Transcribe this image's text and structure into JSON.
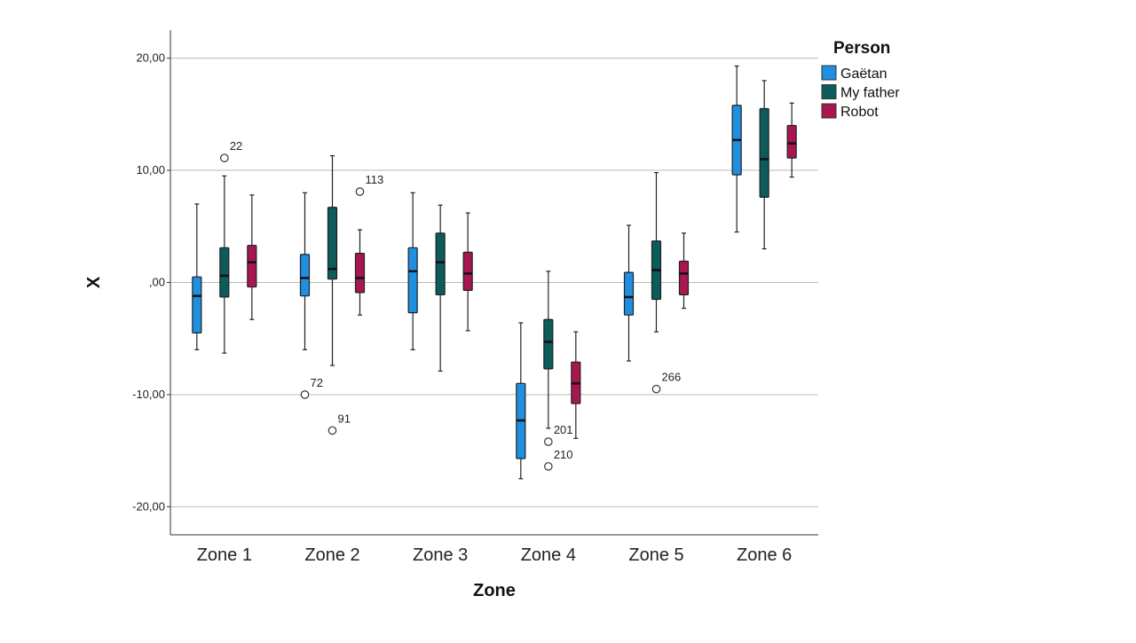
{
  "chart_data": {
    "type": "boxplot",
    "xlabel": "Zone",
    "ylabel": "X",
    "ylim": [
      -22.5,
      22.5
    ],
    "yticks": [
      {
        "value": 20,
        "label": "20,00"
      },
      {
        "value": 10,
        "label": "10,00"
      },
      {
        "value": 0,
        "label": ",00"
      },
      {
        "value": -10,
        "label": "-10,00"
      },
      {
        "value": -20,
        "label": "-20,00"
      }
    ],
    "grid": "horizontal",
    "legend": {
      "title": "Person",
      "position": "top-right"
    },
    "categories": [
      "Zone 1",
      "Zone 2",
      "Zone 3",
      "Zone 4",
      "Zone 5",
      "Zone 6"
    ],
    "series": [
      {
        "name": "Gaëtan",
        "color": "#1f8fe0",
        "boxes": [
          {
            "whislo": -6.0,
            "q1": -4.5,
            "med": -1.2,
            "q3": 0.5,
            "whishi": 7.0,
            "outliers": []
          },
          {
            "whislo": -6.0,
            "q1": -1.2,
            "med": 0.4,
            "q3": 2.5,
            "whishi": 8.0,
            "outliers": [
              {
                "value": -10.0,
                "label": "72"
              }
            ]
          },
          {
            "whislo": -6.0,
            "q1": -2.7,
            "med": 1.0,
            "q3": 3.1,
            "whishi": 8.0,
            "outliers": []
          },
          {
            "whislo": -17.5,
            "q1": -15.7,
            "med": -12.3,
            "q3": -9.0,
            "whishi": -3.6,
            "outliers": []
          },
          {
            "whislo": -7.0,
            "q1": -2.9,
            "med": -1.3,
            "q3": 0.9,
            "whishi": 5.1,
            "outliers": []
          },
          {
            "whislo": 4.5,
            "q1": 9.6,
            "med": 12.7,
            "q3": 15.8,
            "whishi": 19.3,
            "outliers": []
          }
        ]
      },
      {
        "name": "My father",
        "color": "#0b5c5a",
        "boxes": [
          {
            "whislo": -6.3,
            "q1": -1.3,
            "med": 0.6,
            "q3": 3.1,
            "whishi": 9.5,
            "outliers": [
              {
                "value": 11.1,
                "label": "22"
              }
            ]
          },
          {
            "whislo": -7.4,
            "q1": 0.3,
            "med": 1.2,
            "q3": 6.7,
            "whishi": 11.3,
            "outliers": [
              {
                "value": -13.2,
                "label": "91"
              }
            ]
          },
          {
            "whislo": -7.9,
            "q1": -1.1,
            "med": 1.8,
            "q3": 4.4,
            "whishi": 6.9,
            "outliers": []
          },
          {
            "whislo": -13.0,
            "q1": -7.7,
            "med": -5.3,
            "q3": -3.3,
            "whishi": 1.0,
            "outliers": [
              {
                "value": -14.2,
                "label": "201"
              },
              {
                "value": -16.4,
                "label": "210"
              }
            ]
          },
          {
            "whislo": -4.4,
            "q1": -1.5,
            "med": 1.1,
            "q3": 3.7,
            "whishi": 9.8,
            "outliers": [
              {
                "value": -9.5,
                "label": "266"
              }
            ]
          },
          {
            "whislo": 3.0,
            "q1": 7.6,
            "med": 11.0,
            "q3": 15.5,
            "whishi": 18.0,
            "outliers": []
          }
        ]
      },
      {
        "name": "Robot",
        "color": "#a8174f",
        "boxes": [
          {
            "whislo": -3.3,
            "q1": -0.4,
            "med": 1.8,
            "q3": 3.3,
            "whishi": 7.8,
            "outliers": []
          },
          {
            "whislo": -2.9,
            "q1": -0.9,
            "med": 0.4,
            "q3": 2.6,
            "whishi": 4.7,
            "outliers": [
              {
                "value": 8.1,
                "label": "113"
              }
            ]
          },
          {
            "whislo": -4.3,
            "q1": -0.7,
            "med": 0.8,
            "q3": 2.7,
            "whishi": 6.2,
            "outliers": []
          },
          {
            "whislo": -13.9,
            "q1": -10.8,
            "med": -9.0,
            "q3": -7.1,
            "whishi": -4.4,
            "outliers": []
          },
          {
            "whislo": -2.3,
            "q1": -1.1,
            "med": 0.8,
            "q3": 1.9,
            "whishi": 4.4,
            "outliers": []
          },
          {
            "whislo": 9.4,
            "q1": 11.1,
            "med": 12.4,
            "q3": 14.0,
            "whishi": 16.0,
            "outliers": []
          }
        ]
      }
    ]
  }
}
